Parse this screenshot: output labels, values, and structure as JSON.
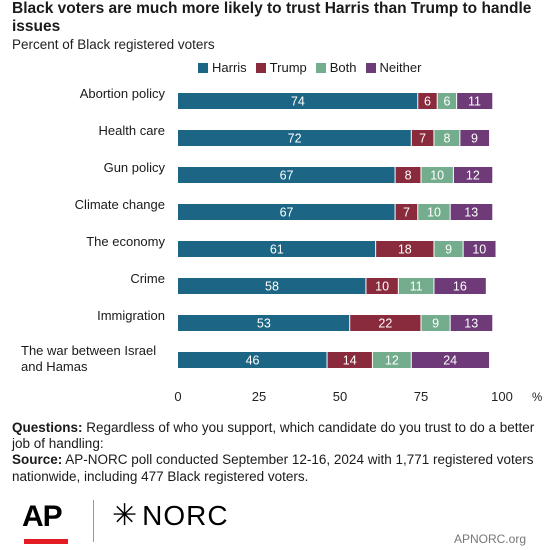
{
  "header": {
    "title": "Black voters are much more likely to trust Harris than Trump to handle issues",
    "subtitle": "Percent of Black registered voters"
  },
  "chart_data": {
    "type": "bar",
    "orientation": "horizontal",
    "stacked": true,
    "categories": [
      "Abortion policy",
      "Health care",
      "Gun policy",
      "Climate change",
      "The economy",
      "Crime",
      "Immigration",
      "The war between Israel and Hamas"
    ],
    "series": [
      {
        "name": "Harris",
        "color": "#1c6584",
        "values": [
          74,
          72,
          67,
          67,
          61,
          58,
          53,
          46
        ]
      },
      {
        "name": "Trump",
        "color": "#8a2b3d",
        "values": [
          6,
          7,
          8,
          7,
          18,
          10,
          22,
          14
        ]
      },
      {
        "name": "Both",
        "color": "#74ad8e",
        "values": [
          6,
          8,
          10,
          10,
          9,
          11,
          9,
          12
        ]
      },
      {
        "name": "Neither",
        "color": "#6e3a78",
        "values": [
          11,
          9,
          12,
          13,
          10,
          16,
          13,
          24
        ]
      }
    ],
    "xlim": [
      0,
      100
    ],
    "x_ticks": [
      "0",
      "25",
      "50",
      "75",
      "100"
    ],
    "x_unit": "%",
    "legend_position": "top",
    "grid": false
  },
  "notes": {
    "questions_label": "Questions:",
    "questions_text": "Regardless of who you support, which candidate do you trust to do a better job of handling:",
    "source_label": "Source:",
    "source_text": "AP-NORC poll conducted September 12-16, 2024 with 1,771 registered voters nationwide, including 477 Black registered voters."
  },
  "footer": {
    "logo_ap": "AP",
    "logo_norc_star": "✳",
    "logo_norc": "NORC",
    "url": "APNORC.org"
  }
}
